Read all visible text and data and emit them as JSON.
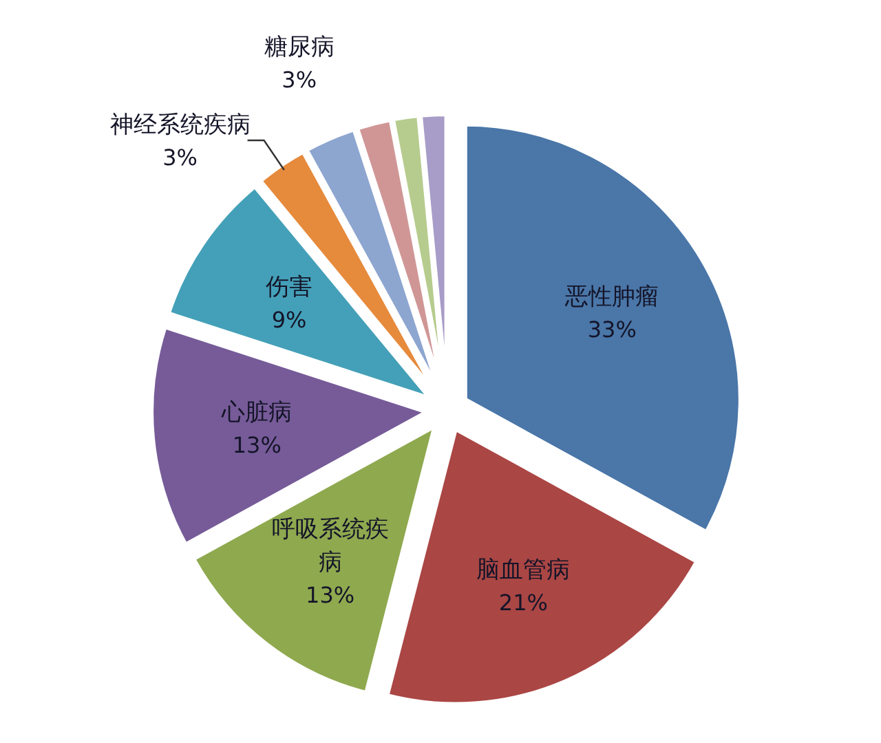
{
  "chart_data": {
    "type": "pie",
    "categories": [
      "恶性肿瘤",
      "脑血管病",
      "呼吸系统疾病",
      "心脏病",
      "伤害",
      "神经系统疾病",
      "糖尿病",
      null,
      null,
      null
    ],
    "values": [
      33,
      21,
      13,
      13,
      9,
      3,
      3,
      2,
      1.5,
      1.5
    ],
    "colors": [
      "#4a76a8",
      "#aa4644",
      "#8fa94f",
      "#765b98",
      "#44a0b8",
      "#e68a3c",
      "#8da6d0",
      "#d09696",
      "#b6cc8e",
      "#a89cc8"
    ],
    "value_labels": [
      "33%",
      "21%",
      "13%",
      "13%",
      "9%",
      "3%",
      "3%",
      null,
      null,
      null
    ]
  }
}
